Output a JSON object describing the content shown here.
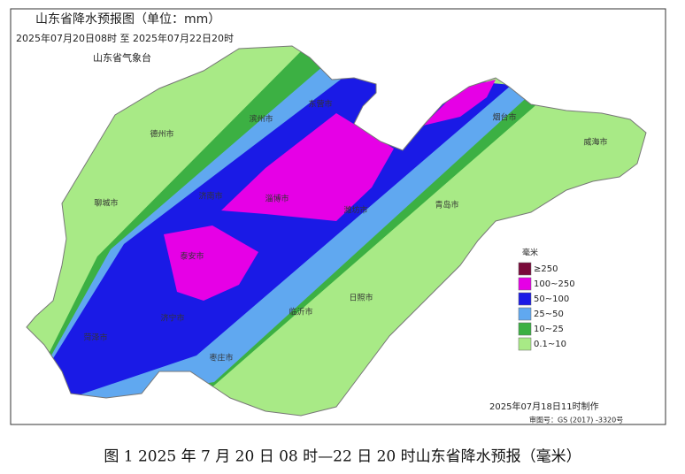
{
  "header": {
    "title": "山东省降水预报图（单位：mm）",
    "period": "2025年07月20日08时 至 2025年07月22日20时",
    "agency": "山东省气象台"
  },
  "cities": [
    "德州市",
    "滨州市",
    "东营市",
    "聊城市",
    "济南市",
    "淄博市",
    "潍坊市",
    "烟台市",
    "威海市",
    "青岛市",
    "泰安市",
    "济宁市",
    "菏泽市",
    "临沂市",
    "日照市",
    "枣庄市"
  ],
  "legend": {
    "title": "毫米",
    "items": [
      {
        "label": "≥250",
        "color": "#7a0a3a"
      },
      {
        "label": "100~250",
        "color": "#e600e6"
      },
      {
        "label": "50~100",
        "color": "#1a1ae6"
      },
      {
        "label": "25~50",
        "color": "#60a8f0"
      },
      {
        "label": "10~25",
        "color": "#3cb043"
      },
      {
        "label": "0.1~10",
        "color": "#a8ea86"
      }
    ]
  },
  "footer": {
    "made": "2025年07月18日11时制作",
    "map_no": "审图号：GS (2017) -3320号"
  },
  "caption": "图 1 2025 年 7 月 20 日 08 时—22 日 20 时山东省降水预报（毫米）"
}
